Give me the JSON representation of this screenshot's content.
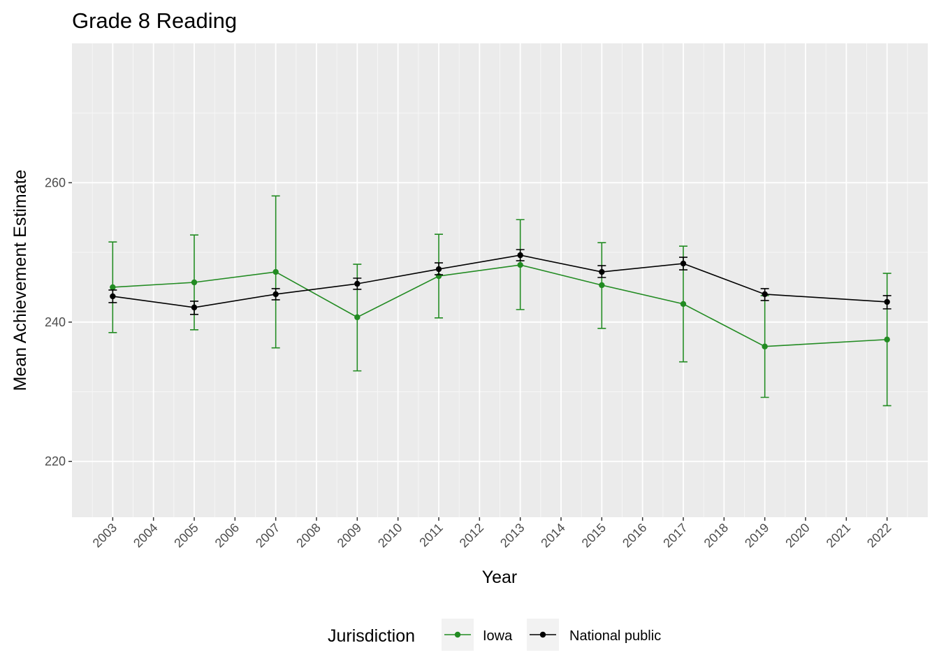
{
  "chart_data": {
    "type": "line",
    "title": "Grade 8 Reading",
    "xlabel": "Year",
    "ylabel": "Mean Achievement Estimate",
    "x_ticks": [
      "2003",
      "2004",
      "2005",
      "2006",
      "2007",
      "2008",
      "2009",
      "2010",
      "2011",
      "2012",
      "2013",
      "2014",
      "2015",
      "2016",
      "2017",
      "2018",
      "2019",
      "2020",
      "2021",
      "2022"
    ],
    "y_ticks": [
      220,
      240,
      260
    ],
    "xlim": [
      2002,
      2023
    ],
    "ylim": [
      212,
      280
    ],
    "legend": {
      "title": "Jurisdiction",
      "position": "bottom"
    },
    "error_bars": true,
    "grid": true,
    "series": [
      {
        "name": "Iowa",
        "color": "#228B22",
        "points": [
          {
            "x": 2003,
            "y": 245.0,
            "lo": 238.5,
            "hi": 251.5
          },
          {
            "x": 2005,
            "y": 245.7,
            "lo": 238.9,
            "hi": 252.5
          },
          {
            "x": 2007,
            "y": 247.2,
            "lo": 236.3,
            "hi": 258.1
          },
          {
            "x": 2009,
            "y": 240.7,
            "lo": 233.0,
            "hi": 248.3
          },
          {
            "x": 2011,
            "y": 246.6,
            "lo": 240.6,
            "hi": 252.6
          },
          {
            "x": 2013,
            "y": 248.2,
            "lo": 241.8,
            "hi": 254.7
          },
          {
            "x": 2015,
            "y": 245.3,
            "lo": 239.1,
            "hi": 251.4
          },
          {
            "x": 2017,
            "y": 242.6,
            "lo": 234.3,
            "hi": 250.9
          },
          {
            "x": 2019,
            "y": 236.5,
            "lo": 229.2,
            "hi": 243.8
          },
          {
            "x": 2022,
            "y": 237.5,
            "lo": 228.0,
            "hi": 247.0
          }
        ]
      },
      {
        "name": "National public",
        "color": "#000000",
        "points": [
          {
            "x": 2003,
            "y": 243.7,
            "lo": 242.8,
            "hi": 244.6
          },
          {
            "x": 2005,
            "y": 242.1,
            "lo": 241.1,
            "hi": 243.0
          },
          {
            "x": 2007,
            "y": 244.0,
            "lo": 243.2,
            "hi": 244.8
          },
          {
            "x": 2009,
            "y": 245.5,
            "lo": 244.7,
            "hi": 246.3
          },
          {
            "x": 2011,
            "y": 247.6,
            "lo": 246.8,
            "hi": 248.5
          },
          {
            "x": 2013,
            "y": 249.6,
            "lo": 248.8,
            "hi": 250.4
          },
          {
            "x": 2015,
            "y": 247.2,
            "lo": 246.4,
            "hi": 248.1
          },
          {
            "x": 2017,
            "y": 248.4,
            "lo": 247.5,
            "hi": 249.3
          },
          {
            "x": 2019,
            "y": 244.0,
            "lo": 243.1,
            "hi": 244.8
          },
          {
            "x": 2022,
            "y": 242.9,
            "lo": 241.9,
            "hi": 243.8
          }
        ]
      }
    ]
  }
}
